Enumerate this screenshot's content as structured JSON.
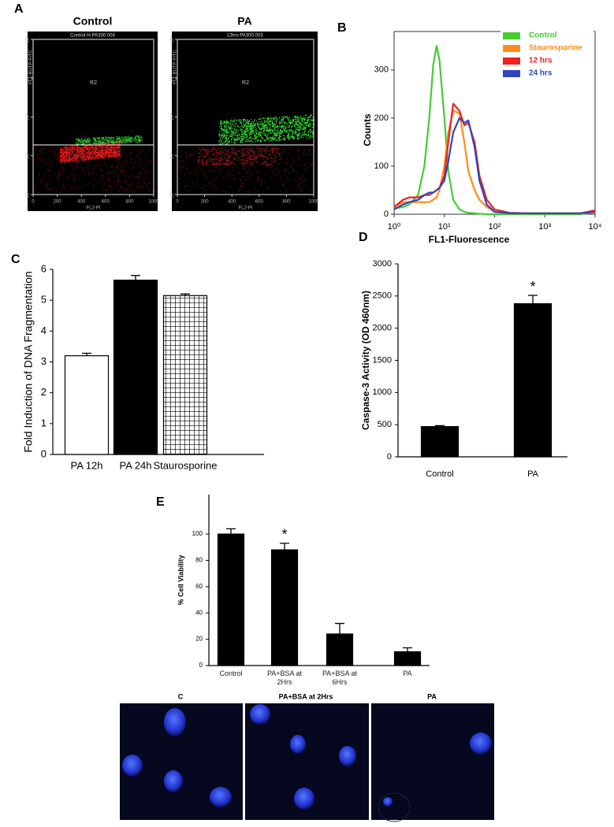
{
  "panel_labels": [
    "A",
    "B",
    "C",
    "D",
    "E"
  ],
  "chart_data": [
    {
      "type": "dot-plot",
      "title": "Control",
      "subtitle": "Control-H-PA300.004",
      "xlabel": "FL2-PI",
      "ylabel": "FL1-BUTP-FITC",
      "region": "R2",
      "xlim": [
        0,
        1000
      ],
      "xticks": [
        0,
        200,
        400,
        600,
        800,
        1000
      ],
      "ylim": [
        1,
        10000
      ],
      "log_y": true,
      "yticks": [
        {
          "value": 1,
          "label": "10⁰"
        },
        {
          "value": 10,
          "label": "10¹"
        },
        {
          "value": 100,
          "label": "10²"
        },
        {
          "value": 1000,
          "label": "10³"
        },
        {
          "value": 10000,
          "label": "10⁴"
        }
      ]
    },
    {
      "type": "dot-plot",
      "title": "PA",
      "subtitle": "12hrs-PA300.003",
      "xlabel": "FL2-PI",
      "ylabel": "FL1-BUTP-FITC",
      "region": "R2",
      "xlim": [
        0,
        1000
      ],
      "xticks": [
        0,
        200,
        400,
        600,
        800,
        1000
      ],
      "ylim": [
        1,
        10000
      ],
      "log_y": true,
      "yticks": [
        {
          "value": 1,
          "label": "10⁰"
        },
        {
          "value": 10,
          "label": "10¹"
        },
        {
          "value": 100,
          "label": "10²"
        },
        {
          "value": 1000,
          "label": "10³"
        },
        {
          "value": 10000,
          "label": "10⁴"
        }
      ]
    },
    {
      "type": "line",
      "xlabel": "FL1-Fluorescence",
      "ylabel": "Counts",
      "log_x": true,
      "legend": "upper right",
      "x": [
        1,
        1.5,
        2,
        3,
        4,
        5,
        6,
        7,
        8,
        10,
        12,
        15,
        20,
        25,
        30,
        40,
        50,
        70,
        100,
        200,
        500,
        1000,
        5000,
        10000
      ],
      "series": [
        {
          "name": "Control",
          "color": "#44cc33",
          "values": [
            12,
            15,
            20,
            40,
            100,
            200,
            310,
            350,
            320,
            200,
            90,
            30,
            10,
            5,
            3,
            2,
            1,
            0,
            0,
            0,
            0,
            0,
            0,
            5
          ]
        },
        {
          "name": "Staurosporine",
          "color": "#ff8c1a",
          "values": [
            15,
            25,
            25,
            25,
            25,
            25,
            30,
            35,
            50,
            100,
            170,
            215,
            210,
            150,
            90,
            50,
            30,
            15,
            5,
            2,
            2,
            2,
            2,
            3
          ]
        },
        {
          "name": "12 hrs",
          "color": "#ee2222",
          "values": [
            15,
            30,
            35,
            35,
            40,
            40,
            45,
            50,
            55,
            80,
            150,
            230,
            215,
            185,
            190,
            150,
            80,
            30,
            10,
            3,
            2,
            2,
            2,
            8
          ]
        },
        {
          "name": "24 hrs",
          "color": "#3344bb",
          "values": [
            10,
            20,
            25,
            30,
            40,
            45,
            45,
            50,
            55,
            70,
            110,
            170,
            200,
            190,
            195,
            140,
            70,
            20,
            5,
            2,
            2,
            2,
            2,
            5
          ]
        }
      ],
      "xlim": [
        1,
        10000
      ],
      "xticks": [
        {
          "value": 1,
          "label": "10⁰"
        },
        {
          "value": 10,
          "label": "10¹"
        },
        {
          "value": 100,
          "label": "10²"
        },
        {
          "value": 1000,
          "label": "10³"
        },
        {
          "value": 10000,
          "label": "10⁴"
        }
      ],
      "ylim": [
        0,
        380
      ],
      "yticks": [
        0,
        100,
        200,
        300
      ]
    },
    {
      "type": "bar",
      "ylabel": "Fold Induction of DNA Fragmentation",
      "categories": [
        "PA 12h",
        "PA 24h",
        "Staurosporine"
      ],
      "values": [
        3.2,
        5.65,
        5.15
      ],
      "errors": [
        0.08,
        0.15,
        0.05
      ],
      "colors": [
        "#ffffff",
        "#000000",
        "#ffffff"
      ],
      "hatch": [
        false,
        false,
        true
      ],
      "ylim": [
        0,
        6
      ],
      "yticks": [
        0,
        1,
        2,
        3,
        4,
        5,
        6
      ]
    },
    {
      "type": "bar",
      "ylabel": "Caspase-3 Activity (OD 460nm)",
      "categories": [
        "Control",
        "PA"
      ],
      "values": [
        470,
        2380
      ],
      "errors": [
        15,
        130
      ],
      "color": "#000000",
      "annotations": [
        {
          "text": "*",
          "category": "PA"
        }
      ],
      "ylim": [
        0,
        3000
      ],
      "yticks": [
        0,
        500,
        1000,
        1500,
        2000,
        2500,
        3000
      ]
    },
    {
      "type": "bar",
      "ylabel": "% Cell Viability",
      "categories": [
        "Control",
        "PA+BSA at 2Hrs",
        "PA+BSA at 6Hrs",
        "PA"
      ],
      "values": [
        100,
        88,
        24,
        10.5
      ],
      "errors": [
        4,
        5,
        8,
        3
      ],
      "color": "#000000",
      "annotations": [
        {
          "text": "*",
          "category": "PA+BSA at 2Hrs"
        }
      ],
      "ylim": [
        0,
        130
      ],
      "yticks": [
        0,
        20,
        40,
        60,
        80,
        100
      ]
    }
  ],
  "micrographs": {
    "labels": [
      "C",
      "PA+BSA at 2Hrs",
      "PA"
    ]
  }
}
